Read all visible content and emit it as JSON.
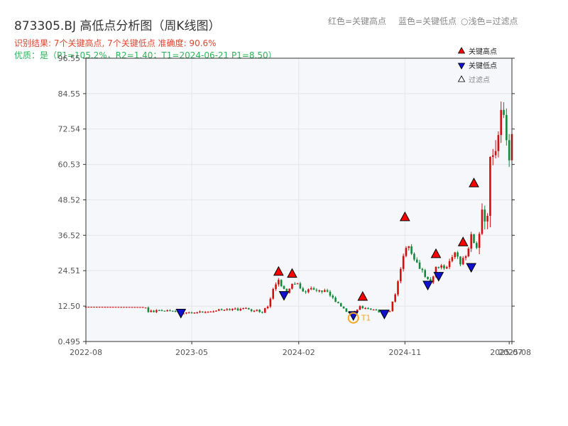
{
  "header": {
    "title": "873305.BJ 高低点分析图（周K线图）",
    "result_line": "识别结果: 7个关键高点, 7个关键低点  准确度: 90.6%",
    "quality_line": "优质：是（P1=105.2%，R2=1.40；T1=2024-06-21 P1=8.50）",
    "legend_red": "红色=关键高点",
    "legend_blue": "蓝色=关键低点",
    "legend_light": "○浅色=过滤点"
  },
  "colors": {
    "up": "#d40f0f",
    "down": "#118a3c",
    "high_marker": "#ff0000",
    "low_marker": "#1010d0",
    "t1_ring": "#f5a623",
    "plot_bg": "#f5f7fa"
  },
  "chart_data": {
    "type": "candlestick",
    "xlim": [
      "2022-08-01",
      "2025-08-04"
    ],
    "ylim": [
      0.495,
      96.55
    ],
    "yticks": [
      "0.495",
      "12.50",
      "24.51",
      "36.52",
      "48.52",
      "60.53",
      "72.54",
      "84.55",
      "96.55"
    ],
    "xticks": [
      {
        "date": "2022-08-01",
        "label": "2022-08"
      },
      {
        "date": "2023-05-01",
        "label": "2023-05"
      },
      {
        "date": "2024-02-01",
        "label": "2024-02"
      },
      {
        "date": "2024-11-01",
        "label": "2024-11"
      },
      {
        "date": "2025-07-28",
        "label": "2025-07"
      },
      {
        "date": "2025-08-04",
        "label": "2025-08"
      }
    ],
    "legend": {
      "position": "top-right",
      "items": [
        {
          "label": "关键高点",
          "marker": "high"
        },
        {
          "label": "关键低点",
          "marker": "low"
        },
        {
          "label": "过滤点",
          "marker": "filtered"
        }
      ]
    },
    "guide_points": [
      [
        "2022-08-01",
        12.3
      ],
      [
        "2023-01-01",
        12.2
      ],
      [
        "2023-01-09",
        10.8
      ],
      [
        "2023-02-20",
        10.8
      ],
      [
        "2023-04-03",
        10.3
      ],
      [
        "2023-05-01",
        10.4
      ],
      [
        "2023-06-12",
        10.8
      ],
      [
        "2023-07-10",
        11.0
      ],
      [
        "2023-08-14",
        11.5
      ],
      [
        "2023-09-25",
        11.4
      ],
      [
        "2023-10-30",
        10.6
      ],
      [
        "2023-11-13",
        12.5
      ],
      [
        "2023-11-27",
        18.0
      ],
      [
        "2023-12-11",
        21.0
      ],
      [
        "2024-01-01",
        17.0
      ],
      [
        "2024-01-15",
        19.5
      ],
      [
        "2024-01-29",
        20.5
      ],
      [
        "2024-02-12",
        17.0
      ],
      [
        "2024-03-04",
        18.5
      ],
      [
        "2024-03-25",
        18.0
      ],
      [
        "2024-04-22",
        16.5
      ],
      [
        "2024-05-13",
        13.0
      ],
      [
        "2024-06-03",
        10.5
      ],
      [
        "2024-06-21",
        10.0
      ],
      [
        "2024-07-08",
        12.5
      ],
      [
        "2024-07-22",
        12.0
      ],
      [
        "2024-08-12",
        11.5
      ],
      [
        "2024-09-02",
        10.2
      ],
      [
        "2024-09-23",
        10.5
      ],
      [
        "2024-10-07",
        17.0
      ],
      [
        "2024-10-21",
        25.0
      ],
      [
        "2024-11-01",
        34.0
      ],
      [
        "2024-11-18",
        30.0
      ],
      [
        "2024-12-02",
        28.0
      ],
      [
        "2024-12-23",
        22.0
      ],
      [
        "2025-01-06",
        21.0
      ],
      [
        "2025-01-20",
        26.0
      ],
      [
        "2025-02-10",
        25.0
      ],
      [
        "2025-02-24",
        27.5
      ],
      [
        "2025-03-10",
        31.0
      ],
      [
        "2025-03-24",
        27.0
      ],
      [
        "2025-04-07",
        29.0
      ],
      [
        "2025-04-21",
        36.0
      ],
      [
        "2025-05-05",
        34.0
      ],
      [
        "2025-05-19",
        46.0
      ],
      [
        "2025-06-02",
        42.0
      ],
      [
        "2025-06-09",
        66.0
      ],
      [
        "2025-06-16",
        62.0
      ],
      [
        "2025-06-30",
        72.0
      ],
      [
        "2025-07-14",
        78.0
      ],
      [
        "2025-07-28",
        66.0
      ],
      [
        "2025-08-04",
        72.0
      ]
    ],
    "key_highs": [
      {
        "date": "2023-12-11",
        "value": 21.5
      },
      {
        "date": "2024-01-15",
        "value": 20.8
      },
      {
        "date": "2024-07-15",
        "value": 13.0
      },
      {
        "date": "2024-11-01",
        "value": 40.0
      },
      {
        "date": "2025-01-20",
        "value": 27.5
      },
      {
        "date": "2025-03-31",
        "value": 31.5
      },
      {
        "date": "2025-04-28",
        "value": 51.5
      }
    ],
    "key_lows": [
      {
        "date": "2023-04-03",
        "value": 10.0
      },
      {
        "date": "2023-12-25",
        "value": 16.0
      },
      {
        "date": "2024-06-21",
        "value": 9.2
      },
      {
        "date": "2024-09-09",
        "value": 9.7
      },
      {
        "date": "2024-12-30",
        "value": 19.5
      },
      {
        "date": "2025-01-27",
        "value": 22.5
      },
      {
        "date": "2025-04-21",
        "value": 25.5
      }
    ],
    "t1_point": {
      "date": "2024-06-21",
      "value": 8.5,
      "label": "T1"
    }
  }
}
